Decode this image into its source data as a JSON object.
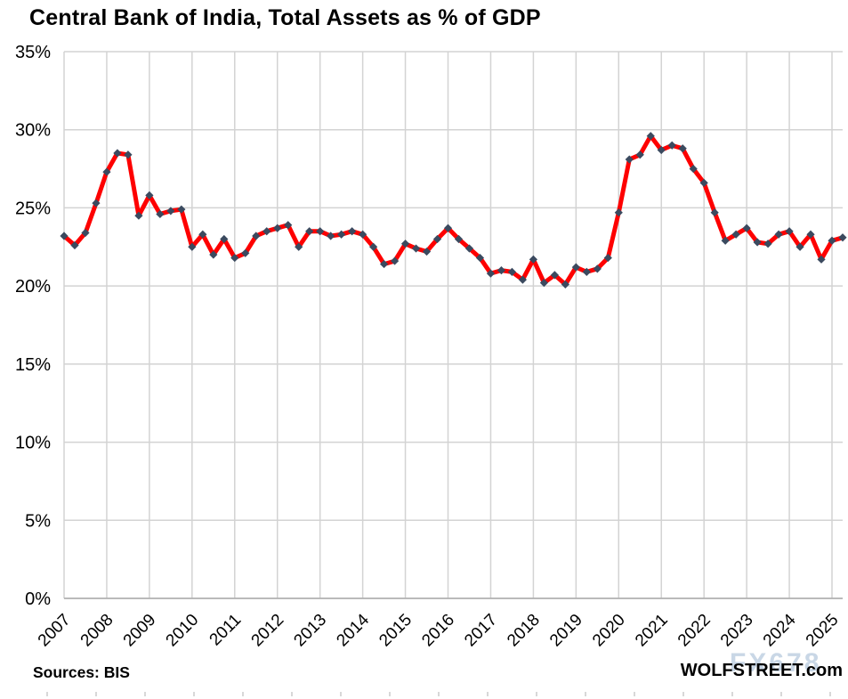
{
  "footer": {
    "source": "Sources: BIS",
    "brand": "WOLFSTREET.com",
    "watermark": "FX678"
  },
  "chart_data": {
    "type": "line",
    "title": "Central Bank of India, Total Assets as % of GDP",
    "xlabel": "",
    "ylabel": "",
    "ylim": [
      0,
      35
    ],
    "grid": true,
    "legend_position": "none",
    "y_tick_labels": [
      "0%",
      "5%",
      "10%",
      "15%",
      "20%",
      "25%",
      "30%",
      "35%"
    ],
    "x_tick_labels": [
      "2007",
      "2008",
      "2009",
      "2010",
      "2011",
      "2012",
      "2013",
      "2014",
      "2015",
      "2016",
      "2017",
      "2018",
      "2019",
      "2020",
      "2021",
      "2022",
      "2023",
      "2024",
      "2025"
    ],
    "frequency": "quarterly",
    "start_period": "2007 Q1",
    "end_period": "2025 Q2",
    "series": [
      {
        "name": "Central Bank of India total assets as % of GDP",
        "values": [
          23.2,
          22.6,
          23.4,
          25.3,
          27.3,
          28.5,
          28.4,
          24.5,
          25.8,
          24.6,
          24.8,
          24.9,
          22.5,
          23.3,
          22.0,
          23.0,
          21.8,
          22.1,
          23.2,
          23.5,
          23.7,
          23.9,
          22.5,
          23.5,
          23.5,
          23.2,
          23.3,
          23.5,
          23.3,
          22.5,
          21.4,
          21.6,
          22.7,
          22.4,
          22.2,
          23.0,
          23.7,
          23.0,
          22.4,
          21.8,
          20.8,
          21.0,
          20.9,
          20.4,
          21.7,
          20.2,
          20.7,
          20.1,
          21.2,
          20.9,
          21.1,
          21.8,
          24.7,
          28.1,
          28.4,
          29.6,
          28.7,
          29.0,
          28.8,
          27.5,
          26.6,
          24.7,
          22.9,
          23.3,
          23.7,
          22.8,
          22.7,
          23.3,
          23.5,
          22.5,
          23.3,
          21.7,
          22.9,
          23.1
        ]
      }
    ],
    "colors": {
      "line": "#fe0000",
      "marker": "#3b4a5f",
      "gridline": "#d3d3d3",
      "axis_line": "#b3b3b3",
      "text": "#000000",
      "watermark": "#c9d7e6"
    }
  }
}
